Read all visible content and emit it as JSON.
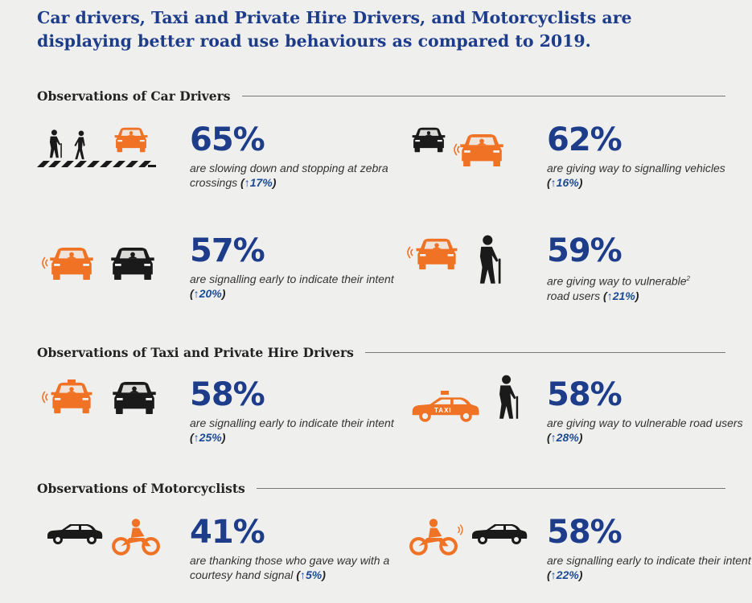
{
  "title": "Car drivers, Taxi and Private Hire Drivers, and Motorcyclists are displaying better road use behaviours as compared to 2019.",
  "colors": {
    "accent": "#1d3c8a",
    "orange": "#f07325",
    "dark": "#1a1a1a"
  },
  "sections": [
    {
      "heading": "Observations of Car Drivers",
      "stats": [
        {
          "percent": "65%",
          "desc": "are slowing down and stopping at zebra crossings",
          "change": "↑17%",
          "icons": [
            "pedestrians-crossing-icon",
            "orange-car-icon"
          ]
        },
        {
          "percent": "62%",
          "desc": "are giving way to signalling vehicles",
          "change": "↑16%",
          "icons": [
            "black-car-icon",
            "orange-car-signalling-icon"
          ]
        },
        {
          "percent": "57%",
          "desc": "are signalling early to indicate their intent",
          "change": "↑20%",
          "icons": [
            "orange-car-signalling-icon",
            "black-car-icon"
          ]
        },
        {
          "percent": "59%",
          "desc": "are giving way to vulnerable",
          "desc2": "road users",
          "footnote": "2",
          "change": "↑21%",
          "icons": [
            "orange-car-signalling-icon",
            "elderly-pedestrian-icon"
          ]
        }
      ]
    },
    {
      "heading": "Observations of Taxi and Private Hire Drivers",
      "stats": [
        {
          "percent": "58%",
          "desc": "are signalling early to indicate their intent",
          "change": "↑25%",
          "icons": [
            "orange-taxi-signalling-icon",
            "black-car-icon"
          ]
        },
        {
          "percent": "58%",
          "desc": "are giving way to vulnerable road users",
          "change": "↑28%",
          "taxi_label": "TAXI",
          "icons": [
            "taxi-side-icon",
            "elderly-pedestrian-icon"
          ]
        }
      ]
    },
    {
      "heading": "Observations of Motorcyclists",
      "stats": [
        {
          "percent": "41%",
          "desc": "are thanking those who gave way with a courtesy hand signal",
          "change": "↑5%",
          "icons": [
            "black-car-side-icon",
            "motorcyclist-icon"
          ]
        },
        {
          "percent": "58%",
          "desc": "are signalling early to indicate their intent",
          "change": "↑22%",
          "icons": [
            "motorcyclist-signalling-icon",
            "black-car-side-icon"
          ]
        }
      ]
    }
  ]
}
